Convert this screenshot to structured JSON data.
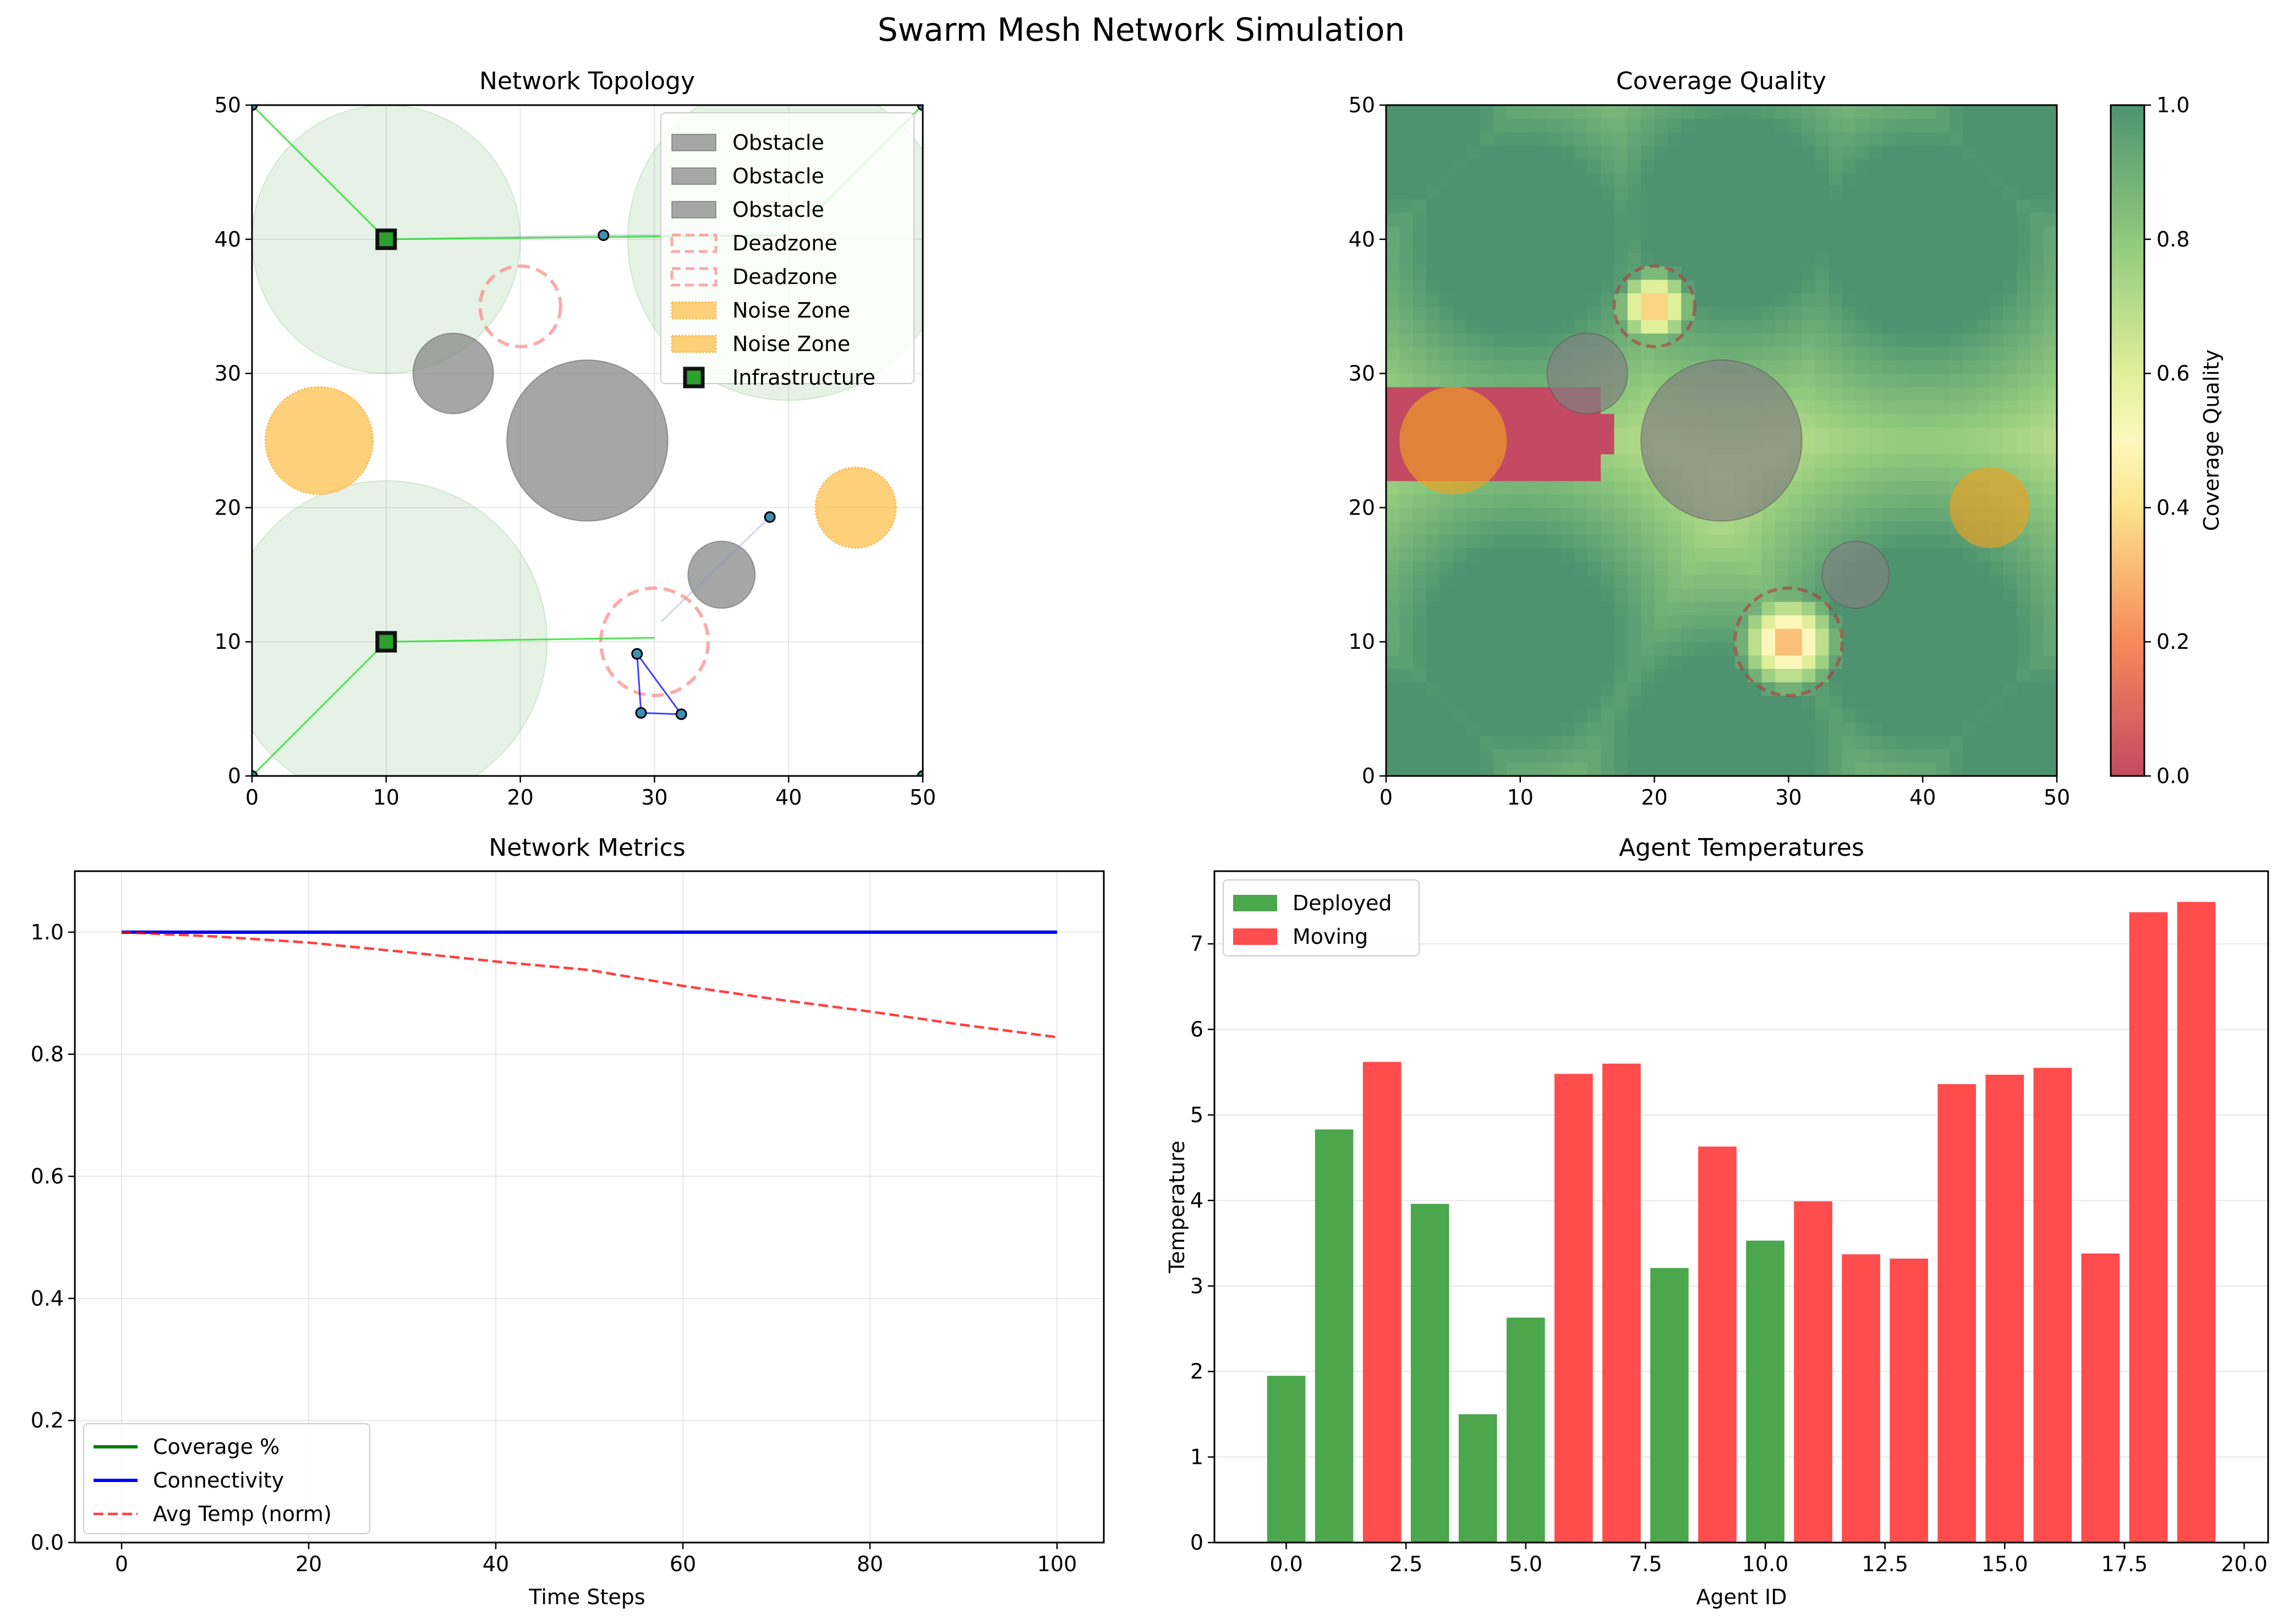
{
  "figure": {
    "title": "Swarm Mesh Network Simulation"
  },
  "chart_data": [
    {
      "type": "scatter",
      "title": "Network Topology",
      "xlabel": "",
      "ylabel": "",
      "xlim": [
        0,
        50
      ],
      "ylim": [
        0,
        50
      ],
      "xticks": [
        "0",
        "10",
        "20",
        "30",
        "40",
        "50"
      ],
      "yticks": [
        "0",
        "10",
        "20",
        "30",
        "40",
        "50"
      ],
      "grid": true,
      "legend_position": "top-right",
      "legend": [
        "Obstacle",
        "Obstacle",
        "Obstacle",
        "Deadzone",
        "Deadzone",
        "Noise Zone",
        "Noise Zone",
        "Infrastructure"
      ],
      "obstacles": [
        {
          "x": 25,
          "y": 25,
          "r": 6
        },
        {
          "x": 15,
          "y": 30,
          "r": 3
        },
        {
          "x": 35,
          "y": 15,
          "r": 2.5
        }
      ],
      "deadzones": [
        {
          "x": 20,
          "y": 35,
          "r": 3
        },
        {
          "x": 30,
          "y": 10,
          "r": 4
        }
      ],
      "noise_zones": [
        {
          "x": 5,
          "y": 25,
          "r": 4
        },
        {
          "x": 45,
          "y": 20,
          "r": 3
        }
      ],
      "infrastructure": [
        {
          "x": 10,
          "y": 40
        },
        {
          "x": 10,
          "y": 10
        }
      ],
      "coverage_circles": [
        {
          "x": 10,
          "y": 40,
          "r": 10
        },
        {
          "x": 10,
          "y": 10,
          "r": 12
        },
        {
          "x": 40,
          "y": 40,
          "r": 12
        }
      ],
      "agents": [
        {
          "x": 0,
          "y": 50
        },
        {
          "x": 0,
          "y": 0
        },
        {
          "x": 50,
          "y": 50
        },
        {
          "x": 50,
          "y": 0
        },
        {
          "x": 26.2,
          "y": 40.3
        },
        {
          "x": 38.6,
          "y": 19.3
        },
        {
          "x": 28.7,
          "y": 9.1
        },
        {
          "x": 29.0,
          "y": 4.7
        },
        {
          "x": 32.0,
          "y": 4.6
        }
      ],
      "links_infra": [
        [
          [
            0,
            50
          ],
          [
            10,
            40
          ]
        ],
        [
          [
            0,
            0
          ],
          [
            10,
            10
          ]
        ],
        [
          [
            10,
            40
          ],
          [
            40,
            40.3
          ]
        ],
        [
          [
            10,
            10
          ],
          [
            30,
            10.3
          ]
        ],
        [
          [
            50,
            50
          ],
          [
            42,
            42
          ]
        ]
      ],
      "links_agents": [
        [
          [
            28.7,
            9.1
          ],
          [
            29.0,
            4.7
          ]
        ],
        [
          [
            28.7,
            9.1
          ],
          [
            32.0,
            4.6
          ]
        ],
        [
          [
            29.0,
            4.7
          ],
          [
            32.0,
            4.6
          ]
        ]
      ],
      "links_faint": [
        [
          [
            26.2,
            40.3
          ],
          [
            40,
            40.3
          ]
        ],
        [
          [
            10,
            40
          ],
          [
            26.2,
            40.3
          ]
        ],
        [
          [
            38.6,
            19.3
          ],
          [
            30.5,
            11.5
          ]
        ]
      ]
    },
    {
      "type": "heatmap",
      "title": "Coverage Quality",
      "xlabel": "",
      "ylabel": "",
      "xlim": [
        0,
        50
      ],
      "ylim": [
        0,
        50
      ],
      "xticks": [
        "0",
        "10",
        "20",
        "30",
        "40",
        "50"
      ],
      "yticks": [
        "0",
        "10",
        "20",
        "30",
        "40",
        "50"
      ],
      "colorbar_label": "Coverage Quality",
      "colorbar_ticks": [
        "0.0",
        "0.2",
        "0.4",
        "0.6",
        "0.8",
        "1.0"
      ],
      "colorbar_range": [
        0,
        1
      ],
      "coverage_sources": [
        {
          "x": 10,
          "y": 40
        },
        {
          "x": 10,
          "y": 10
        },
        {
          "x": 26,
          "y": 42
        },
        {
          "x": 40,
          "y": 40
        },
        {
          "x": 40,
          "y": 10
        },
        {
          "x": 25,
          "y": 2
        },
        {
          "x": 0,
          "y": 0
        },
        {
          "x": 50,
          "y": 0
        },
        {
          "x": 0,
          "y": 50
        },
        {
          "x": 50,
          "y": 50
        }
      ],
      "no_coverage_region": {
        "x0": 0,
        "x1": 17,
        "y0": 22,
        "y1": 29
      },
      "obstacles": [
        {
          "x": 25,
          "y": 25,
          "r": 6
        },
        {
          "x": 15,
          "y": 30,
          "r": 3
        },
        {
          "x": 35,
          "y": 15,
          "r": 2.5
        }
      ],
      "deadzones": [
        {
          "x": 20,
          "y": 35,
          "r": 3
        },
        {
          "x": 30,
          "y": 10,
          "r": 4
        }
      ],
      "noise_zones": [
        {
          "x": 5,
          "y": 25,
          "r": 4
        },
        {
          "x": 45,
          "y": 20,
          "r": 3
        }
      ]
    },
    {
      "type": "line",
      "title": "Network Metrics",
      "xlabel": "Time Steps",
      "ylabel": "",
      "xlim": [
        -5,
        105
      ],
      "ylim": [
        0,
        1.1
      ],
      "xticks": [
        "0",
        "20",
        "40",
        "60",
        "80",
        "100"
      ],
      "yticks": [
        "0.0",
        "0.2",
        "0.4",
        "0.6",
        "0.8",
        "1.0"
      ],
      "grid": true,
      "legend_position": "bottom-left",
      "x": [
        0,
        10,
        20,
        30,
        40,
        50,
        60,
        70,
        80,
        90,
        100
      ],
      "series": [
        {
          "name": "Coverage %",
          "color": "#008000",
          "style": "solid",
          "values": [
            1,
            1,
            1,
            1,
            1,
            1,
            1,
            1,
            1,
            1,
            1
          ]
        },
        {
          "name": "Connectivity",
          "color": "#0000ff",
          "style": "solid",
          "values": [
            1,
            1,
            1,
            1,
            1,
            1,
            1,
            1,
            1,
            1,
            1
          ]
        },
        {
          "name": "Avg Temp (norm)",
          "color": "#ff0000",
          "style": "dashed",
          "values": [
            1.0,
            0.993,
            0.983,
            0.968,
            0.952,
            0.938,
            0.912,
            0.89,
            0.87,
            0.848,
            0.828
          ]
        }
      ]
    },
    {
      "type": "bar",
      "title": "Agent Temperatures",
      "xlabel": "Agent ID",
      "ylabel": "Temperature",
      "xlim": [
        -1.5,
        20.5
      ],
      "ylim": [
        0,
        7.85
      ],
      "xticks": [
        "0.0",
        "2.5",
        "5.0",
        "7.5",
        "10.0",
        "12.5",
        "15.0",
        "17.5",
        "20.0"
      ],
      "yticks": [
        "0",
        "1",
        "2",
        "3",
        "4",
        "5",
        "6",
        "7"
      ],
      "grid": true,
      "legend_position": "top-left",
      "legend": [
        "Deployed",
        "Moving"
      ],
      "colors": {
        "Deployed": "#4ca64c",
        "Moving": "#ff4c4c"
      },
      "categories": [
        0,
        1,
        2,
        3,
        4,
        5,
        6,
        7,
        8,
        9,
        10,
        11,
        12,
        13,
        14,
        15,
        16,
        17,
        18,
        19
      ],
      "values": [
        1.95,
        4.83,
        5.62,
        3.96,
        1.5,
        2.63,
        5.48,
        5.6,
        3.21,
        4.63,
        3.53,
        3.99,
        3.37,
        3.32,
        5.36,
        5.47,
        5.55,
        3.38,
        7.37,
        7.49
      ],
      "status": [
        "Deployed",
        "Deployed",
        "Moving",
        "Deployed",
        "Deployed",
        "Deployed",
        "Moving",
        "Moving",
        "Deployed",
        "Moving",
        "Deployed",
        "Moving",
        "Moving",
        "Moving",
        "Moving",
        "Moving",
        "Moving",
        "Moving",
        "Moving",
        "Moving"
      ]
    }
  ]
}
